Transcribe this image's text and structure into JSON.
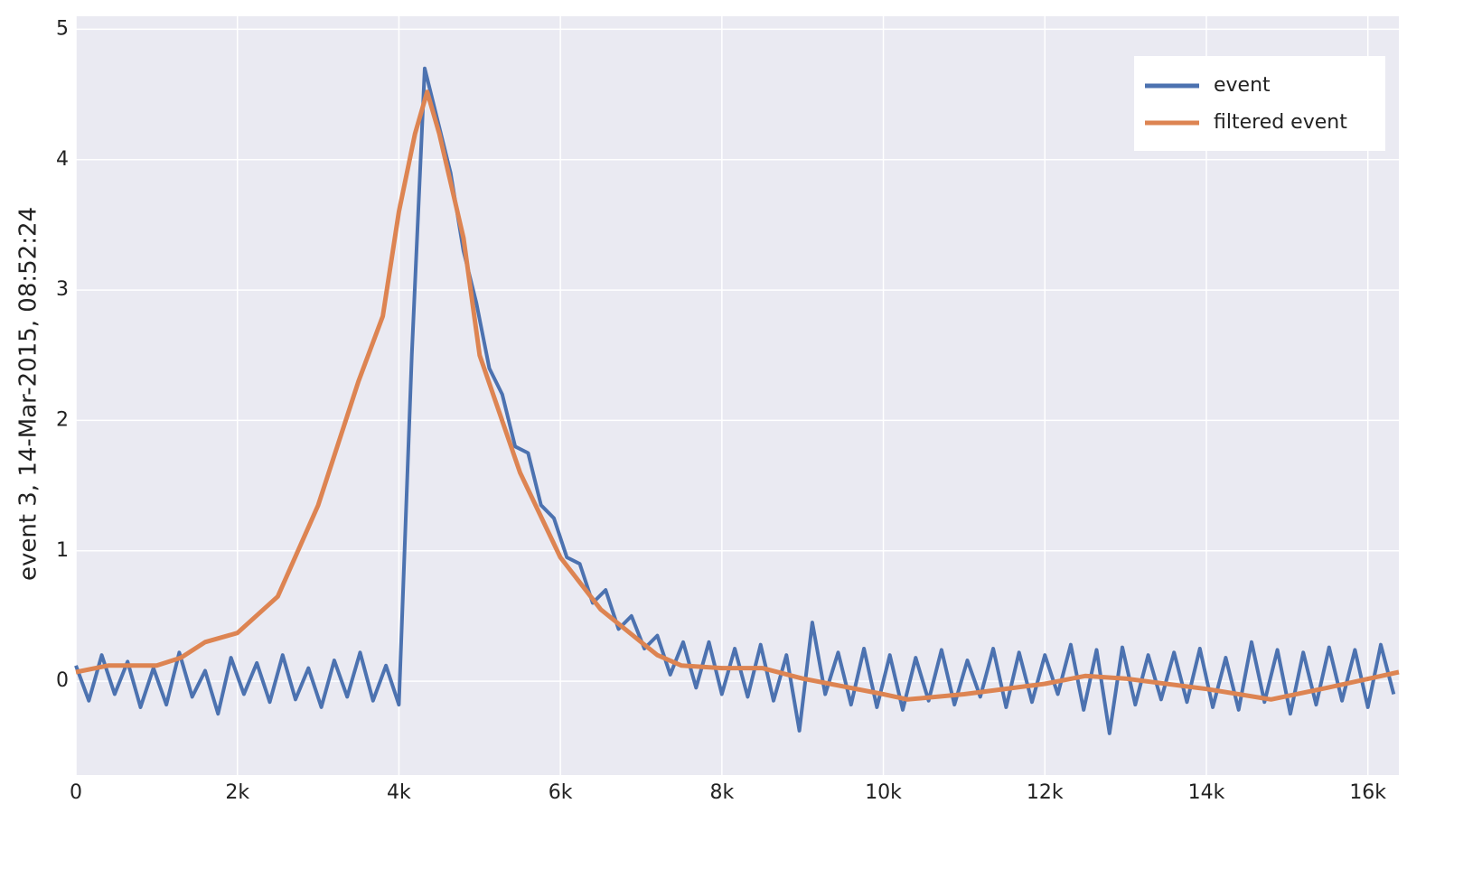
{
  "chart_data": {
    "type": "line",
    "y_label": "event 3, 14-Mar-2015, 08:52:24",
    "xlim": [
      0,
      16384
    ],
    "ylim": [
      -0.72,
      5.1
    ],
    "xticks": [
      0,
      {
        "value": 2000,
        "label": "2k"
      },
      {
        "value": 4000,
        "label": "4k"
      },
      {
        "value": 6000,
        "label": "6k"
      },
      {
        "value": 8000,
        "label": "8k"
      },
      {
        "value": 10000,
        "label": "10k"
      },
      {
        "value": 12000,
        "label": "12k"
      },
      {
        "value": 14000,
        "label": "14k"
      },
      {
        "value": 16000,
        "label": "16k"
      }
    ],
    "yticks": [
      0,
      1,
      2,
      3,
      4,
      5
    ],
    "grid": true,
    "legend": "top-right",
    "series": [
      {
        "name": "event",
        "color": "#4c72b0",
        "x": [
          0,
          160,
          320,
          480,
          640,
          800,
          960,
          1120,
          1280,
          1440,
          1600,
          1760,
          1920,
          2080,
          2240,
          2400,
          2560,
          2720,
          2880,
          3040,
          3200,
          3360,
          3520,
          3680,
          3840,
          4000,
          4160,
          4320,
          4480,
          4640,
          4800,
          4960,
          5120,
          5280,
          5440,
          5600,
          5760,
          5920,
          6080,
          6240,
          6400,
          6560,
          6720,
          6880,
          7040,
          7200,
          7360,
          7520,
          7680,
          7840,
          8000,
          8160,
          8320,
          8480,
          8640,
          8800,
          8960,
          9120,
          9280,
          9440,
          9600,
          9760,
          9920,
          10080,
          10240,
          10400,
          10560,
          10720,
          10880,
          11040,
          11200,
          11360,
          11520,
          11680,
          11840,
          12000,
          12160,
          12320,
          12480,
          12640,
          12800,
          12960,
          13120,
          13280,
          13440,
          13600,
          13760,
          13920,
          14080,
          14240,
          14400,
          14560,
          14720,
          14880,
          15040,
          15200,
          15360,
          15520,
          15680,
          15840,
          16000,
          16160,
          16320
        ],
        "values": [
          0.12,
          -0.15,
          0.2,
          -0.1,
          0.15,
          -0.2,
          0.1,
          -0.18,
          0.22,
          -0.12,
          0.08,
          -0.25,
          0.18,
          -0.1,
          0.14,
          -0.16,
          0.2,
          -0.14,
          0.1,
          -0.2,
          0.16,
          -0.12,
          0.22,
          -0.15,
          0.12,
          -0.18,
          2.5,
          4.7,
          4.3,
          3.9,
          3.3,
          2.9,
          2.4,
          2.2,
          1.8,
          1.75,
          1.35,
          1.25,
          0.95,
          0.9,
          0.6,
          0.7,
          0.4,
          0.5,
          0.25,
          0.35,
          0.05,
          0.3,
          -0.05,
          0.3,
          -0.1,
          0.25,
          -0.12,
          0.28,
          -0.15,
          0.2,
          -0.38,
          0.45,
          -0.1,
          0.22,
          -0.18,
          0.25,
          -0.2,
          0.2,
          -0.22,
          0.18,
          -0.15,
          0.24,
          -0.18,
          0.16,
          -0.12,
          0.25,
          -0.2,
          0.22,
          -0.16,
          0.2,
          -0.1,
          0.28,
          -0.22,
          0.24,
          -0.4,
          0.26,
          -0.18,
          0.2,
          -0.14,
          0.22,
          -0.16,
          0.25,
          -0.2,
          0.18,
          -0.22,
          0.3,
          -0.16,
          0.24,
          -0.25,
          0.22,
          -0.18,
          0.26,
          -0.15,
          0.24,
          -0.2,
          0.28,
          -0.1
        ]
      },
      {
        "name": "filtered event",
        "color": "#dd8452",
        "x": [
          0,
          400,
          1000,
          1300,
          1600,
          2000,
          2500,
          3000,
          3500,
          3800,
          4000,
          4200,
          4350,
          4500,
          4800,
          5000,
          5500,
          6000,
          6500,
          7000,
          7200,
          7500,
          8000,
          8500,
          9000,
          10000,
          10300,
          11000,
          12000,
          12500,
          13000,
          14000,
          14800,
          15500,
          16384
        ],
        "values": [
          0.07,
          0.12,
          0.12,
          0.18,
          0.3,
          0.37,
          0.65,
          1.35,
          2.3,
          2.8,
          3.6,
          4.2,
          4.52,
          4.2,
          3.4,
          2.5,
          1.6,
          0.95,
          0.55,
          0.3,
          0.2,
          0.12,
          0.1,
          0.1,
          0.02,
          -0.1,
          -0.14,
          -0.1,
          -0.02,
          0.04,
          0.02,
          -0.06,
          -0.14,
          -0.05,
          0.07
        ]
      }
    ]
  }
}
